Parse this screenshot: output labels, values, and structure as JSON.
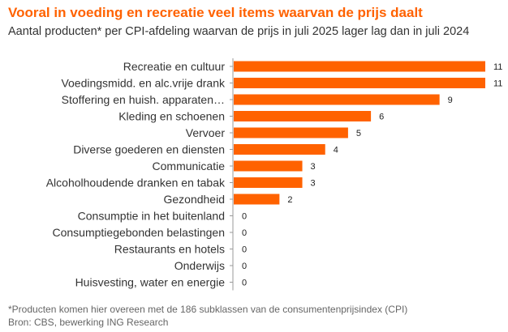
{
  "header": {
    "title": "Vooral in voeding en recreatie veel items waarvan de prijs daalt",
    "subtitle": "Aantal producten* per CPI-afdeling waarvan de prijs in juli 2025 lager lag dan in juli 2024"
  },
  "footer": {
    "note": "*Producten komen hier overeen met de 186 subklassen van de consumentenprijsindex (CPI)",
    "source": "Bron: CBS, bewerking ING Research"
  },
  "colors": {
    "bar": "#ff6200",
    "title": "#ff6200",
    "text": "#333333",
    "axis": "#999999"
  },
  "chart_data": {
    "type": "bar",
    "orientation": "horizontal",
    "categories": [
      "Recreatie en cultuur",
      "Voedingsmidd. en alc.vrije drank",
      "Stoffering en huish. apparaten…",
      "Kleding en schoenen",
      "Vervoer",
      "Diverse goederen en diensten",
      "Communicatie",
      "Alcoholhoudende dranken en tabak",
      "Gezondheid",
      "Consumptie in het buitenland",
      "Consumptiegebonden belastingen",
      "Restaurants en hotels",
      "Onderwijs",
      "Huisvesting, water en energie"
    ],
    "values": [
      11,
      11,
      9,
      6,
      5,
      4,
      3,
      3,
      2,
      0,
      0,
      0,
      0,
      0
    ],
    "title": "",
    "xlabel": "",
    "ylabel": "",
    "xlim": [
      0,
      11
    ],
    "grid": false,
    "legend": "none",
    "data_labels": true
  }
}
